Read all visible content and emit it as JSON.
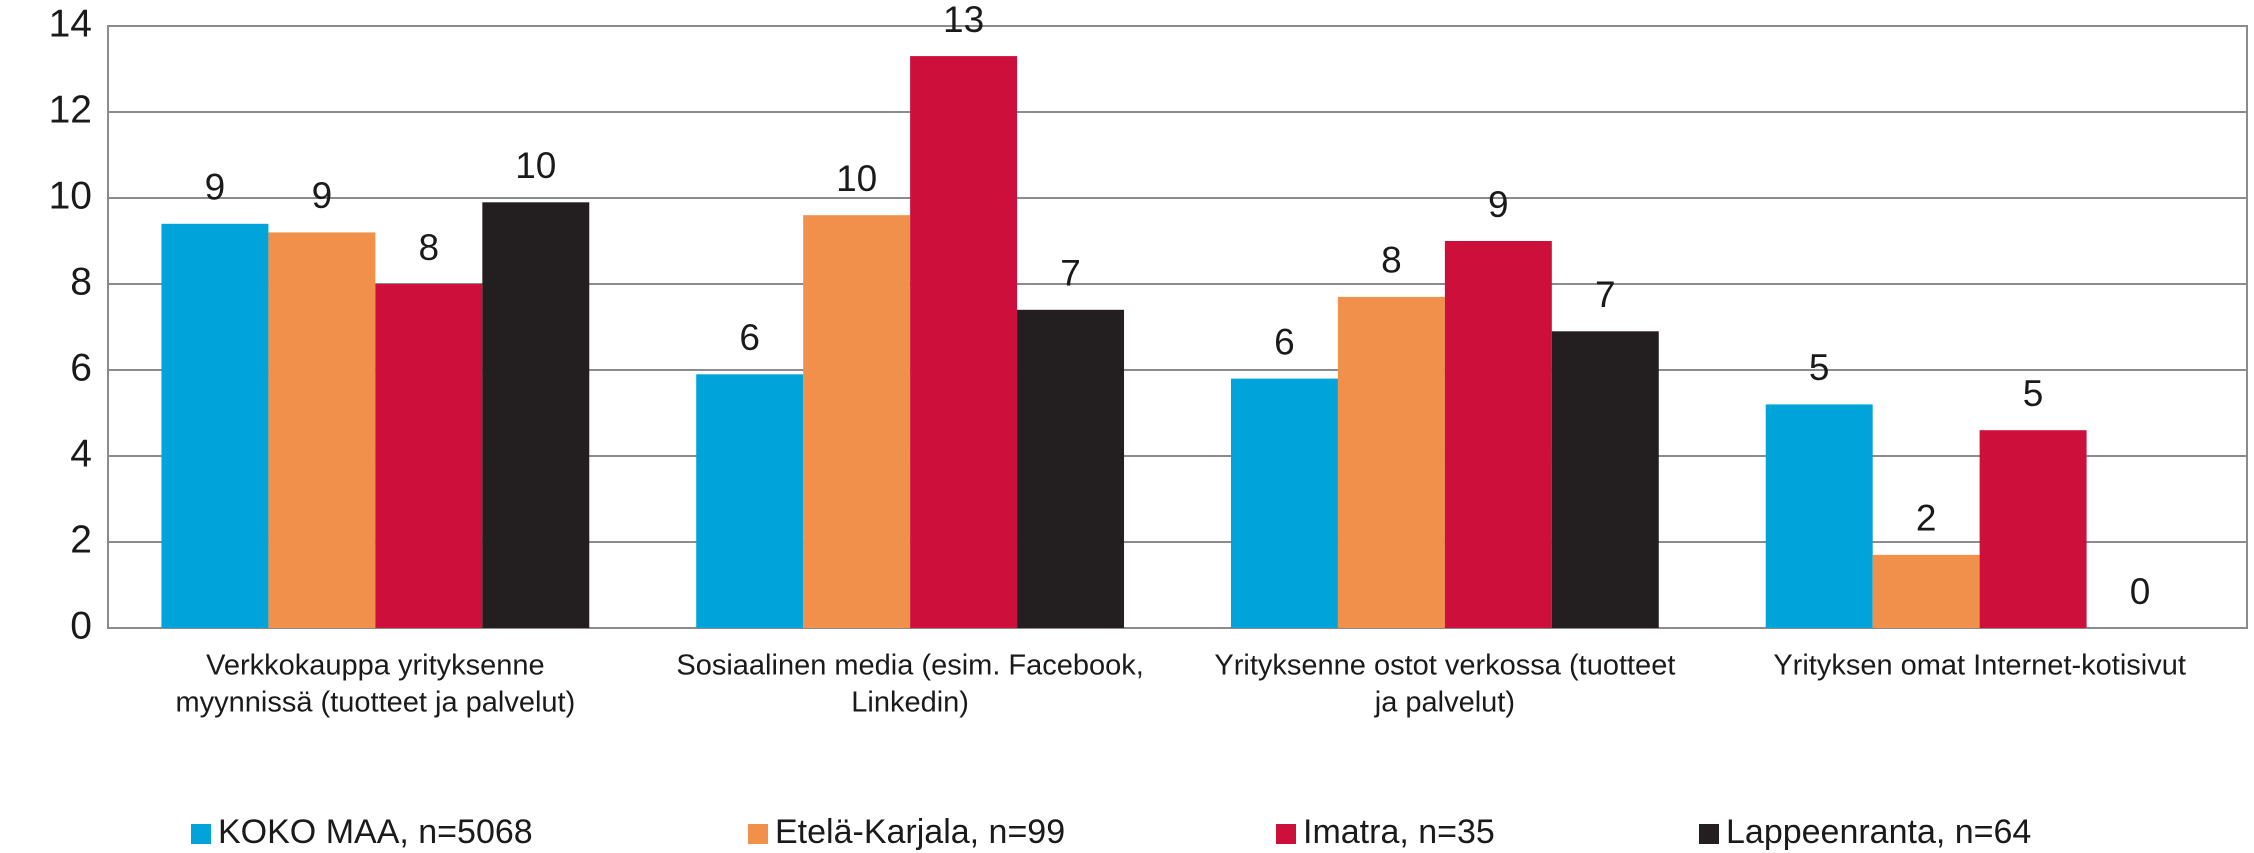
{
  "chart_data": {
    "type": "bar",
    "categories": [
      [
        "Verkkokauppa yrityksenne",
        "myynnissä (tuotteet ja palvelut)"
      ],
      [
        "Sosiaalinen media (esim. Facebook,",
        "Linkedin)"
      ],
      [
        "Yrityksenne ostot verkossa (tuotteet",
        "ja palvelut)"
      ],
      [
        "Yrityksen omat Internet-kotisivut"
      ]
    ],
    "series": [
      {
        "name": "KOKO MAA, n=5068",
        "color": "#00a3da",
        "values": [
          9.4,
          5.9,
          5.8,
          5.2
        ],
        "value_labels": [
          "9",
          "6",
          "6",
          "5"
        ]
      },
      {
        "name": "Etelä-Karjala, n=99",
        "color": "#f0904a",
        "values": [
          9.2,
          9.6,
          7.7,
          1.7
        ],
        "value_labels": [
          "9",
          "10",
          "8",
          "2"
        ]
      },
      {
        "name": "Imatra, n=35",
        "color": "#cd0f3c",
        "values": [
          8.0,
          13.3,
          9.0,
          4.6
        ],
        "value_labels": [
          "8",
          "13",
          "9",
          "5"
        ]
      },
      {
        "name": "Lappeenranta, n=64",
        "color": "#231f20",
        "values": [
          9.9,
          7.4,
          6.9,
          0
        ],
        "value_labels": [
          "10",
          "7",
          "7",
          "0"
        ]
      }
    ],
    "ylim": [
      0,
      14
    ],
    "yticks": [
      0,
      2,
      4,
      6,
      8,
      10,
      12,
      14
    ],
    "grid": true,
    "legend": "bottom"
  }
}
